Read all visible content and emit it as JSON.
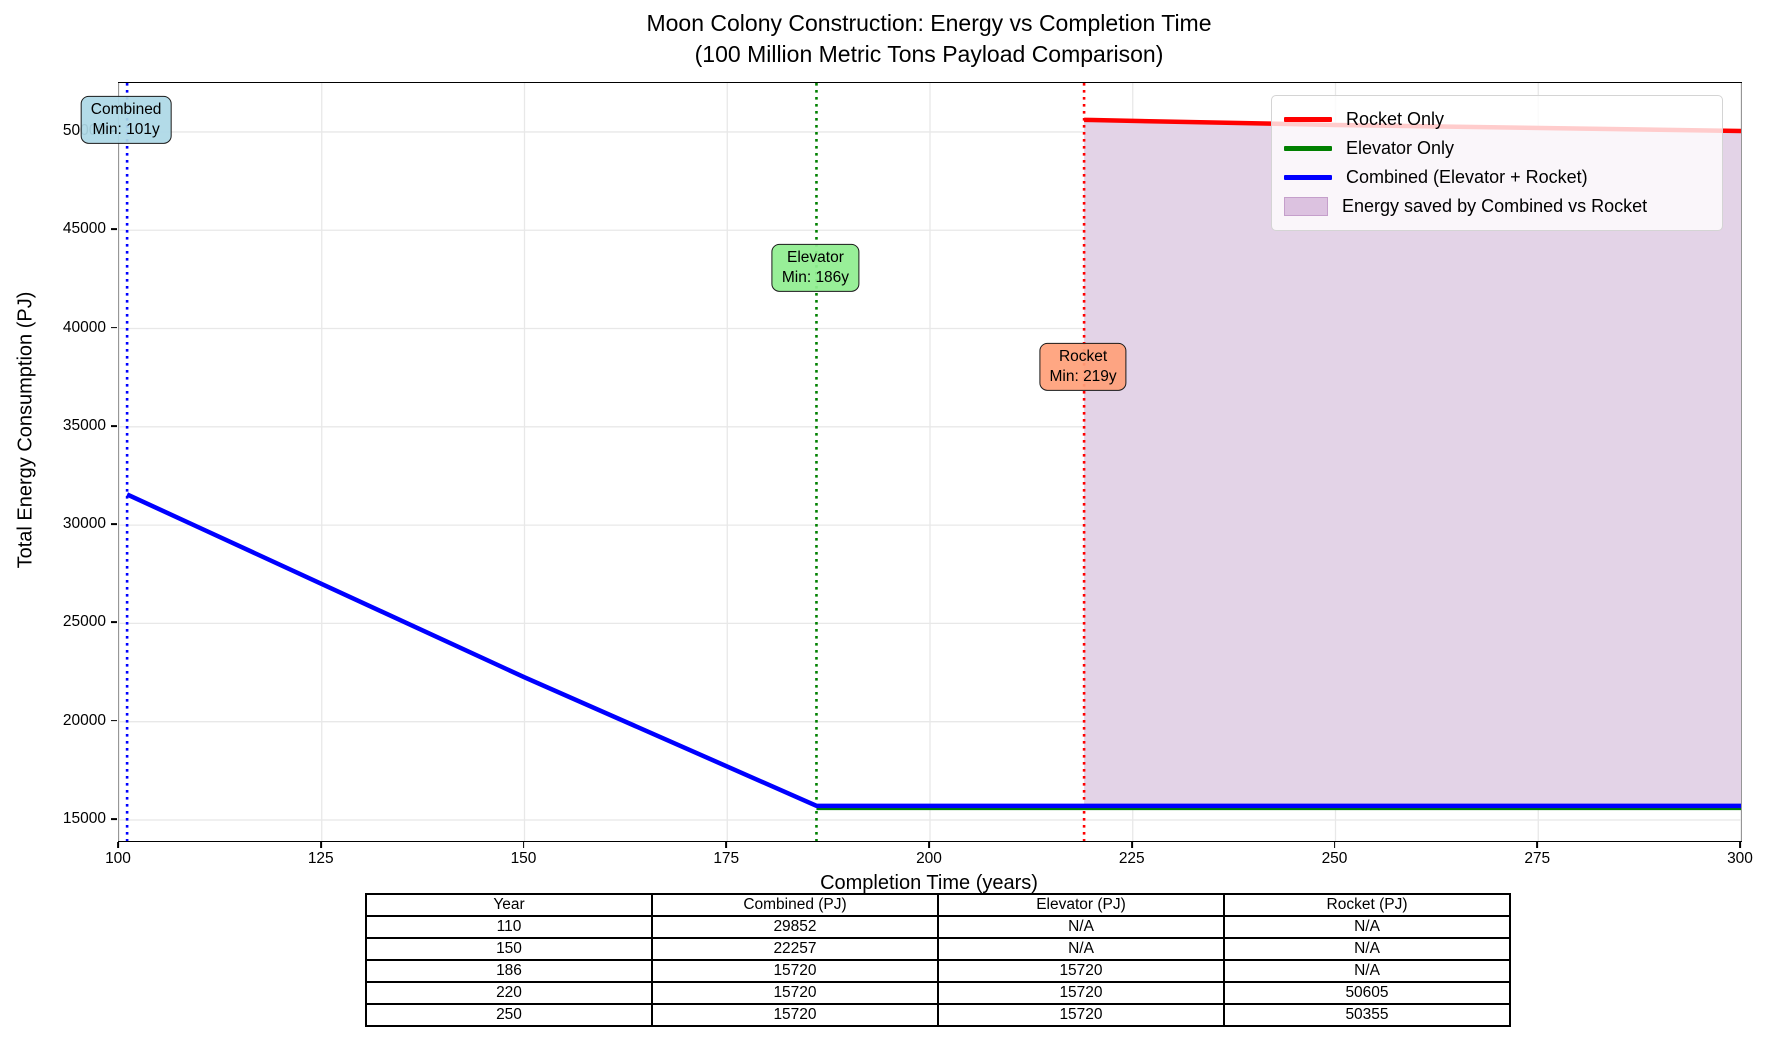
{
  "title": {
    "line1": "Moon Colony Construction: Energy vs Completion Time",
    "line2": "(100 Million Metric Tons Payload Comparison)"
  },
  "chart_data": {
    "type": "line",
    "xlabel": "Completion Time (years)",
    "ylabel": "Total Energy Consumption (PJ)",
    "xlim": [
      100,
      300
    ],
    "ylim": [
      13930,
      52490
    ],
    "xticks": [
      100,
      125,
      150,
      175,
      200,
      225,
      250,
      275,
      300
    ],
    "yticks": [
      15000,
      20000,
      25000,
      30000,
      35000,
      40000,
      45000,
      50000
    ],
    "grid": true,
    "grid_color": "#e8e8e8",
    "legend_position": "upper right",
    "series": [
      {
        "name": "Rocket Only",
        "color": "#ff0000",
        "width": 4.5,
        "points": [
          [
            219,
            50613
          ],
          [
            220,
            50605
          ],
          [
            250,
            50355
          ],
          [
            300,
            50050
          ]
        ]
      },
      {
        "name": "Elevator Only",
        "color": "#008000",
        "width": 4.5,
        "dy": 2,
        "points": [
          [
            186,
            15720
          ],
          [
            300,
            15720
          ]
        ]
      },
      {
        "name": "Combined (Elevator + Rocket)",
        "color": "#0000ff",
        "width": 4.5,
        "points": [
          [
            101,
            31561
          ],
          [
            110,
            29852
          ],
          [
            150,
            22257
          ],
          [
            186,
            15720
          ],
          [
            300,
            15720
          ]
        ]
      }
    ],
    "fill_between": {
      "label": "Energy saved by Combined vs Rocket",
      "color": "#e3d3e7",
      "x_range": [
        219,
        300
      ],
      "upper_series": "Rocket Only",
      "lower_value": 15720
    },
    "vlines": [
      {
        "x": 101,
        "color": "#0000ff",
        "style": "dotted"
      },
      {
        "x": 186,
        "color": "#008000",
        "style": "dotted"
      },
      {
        "x": 219,
        "color": "#ff0000",
        "style": "dotted"
      }
    ],
    "annotations": [
      {
        "line1": "Combined",
        "line2": "Min: 101y",
        "x": 101,
        "y_frac": 0.05,
        "bg": "rgba(173,216,230,0.93)"
      },
      {
        "line1": "Elevator",
        "line2": "Min: 186y",
        "x": 186,
        "y_frac": 0.245,
        "bg": "rgba(144,238,144,0.93)"
      },
      {
        "line1": "Rocket",
        "line2": "Min: 219y",
        "x": 219,
        "y_frac": 0.376,
        "bg": "rgba(255,160,122,0.93)"
      }
    ],
    "legend": [
      {
        "label": "Rocket Only",
        "type": "line",
        "color": "#ff0000"
      },
      {
        "label": "Elevator Only",
        "type": "line",
        "color": "#008000"
      },
      {
        "label": "Combined (Elevator + Rocket)",
        "type": "line",
        "color": "#0000ff"
      },
      {
        "label": "Energy saved by Combined vs Rocket",
        "type": "patch",
        "color": "#dcc2e0",
        "border": "#c59fcb"
      }
    ]
  },
  "table": {
    "headers": [
      "Year",
      "Combined (PJ)",
      "Elevator (PJ)",
      "Rocket (PJ)"
    ],
    "rows": [
      [
        "110",
        "29852",
        "N/A",
        "N/A"
      ],
      [
        "150",
        "22257",
        "N/A",
        "N/A"
      ],
      [
        "186",
        "15720",
        "15720",
        "N/A"
      ],
      [
        "220",
        "15720",
        "15720",
        "50605"
      ],
      [
        "250",
        "15720",
        "15720",
        "50355"
      ]
    ]
  }
}
